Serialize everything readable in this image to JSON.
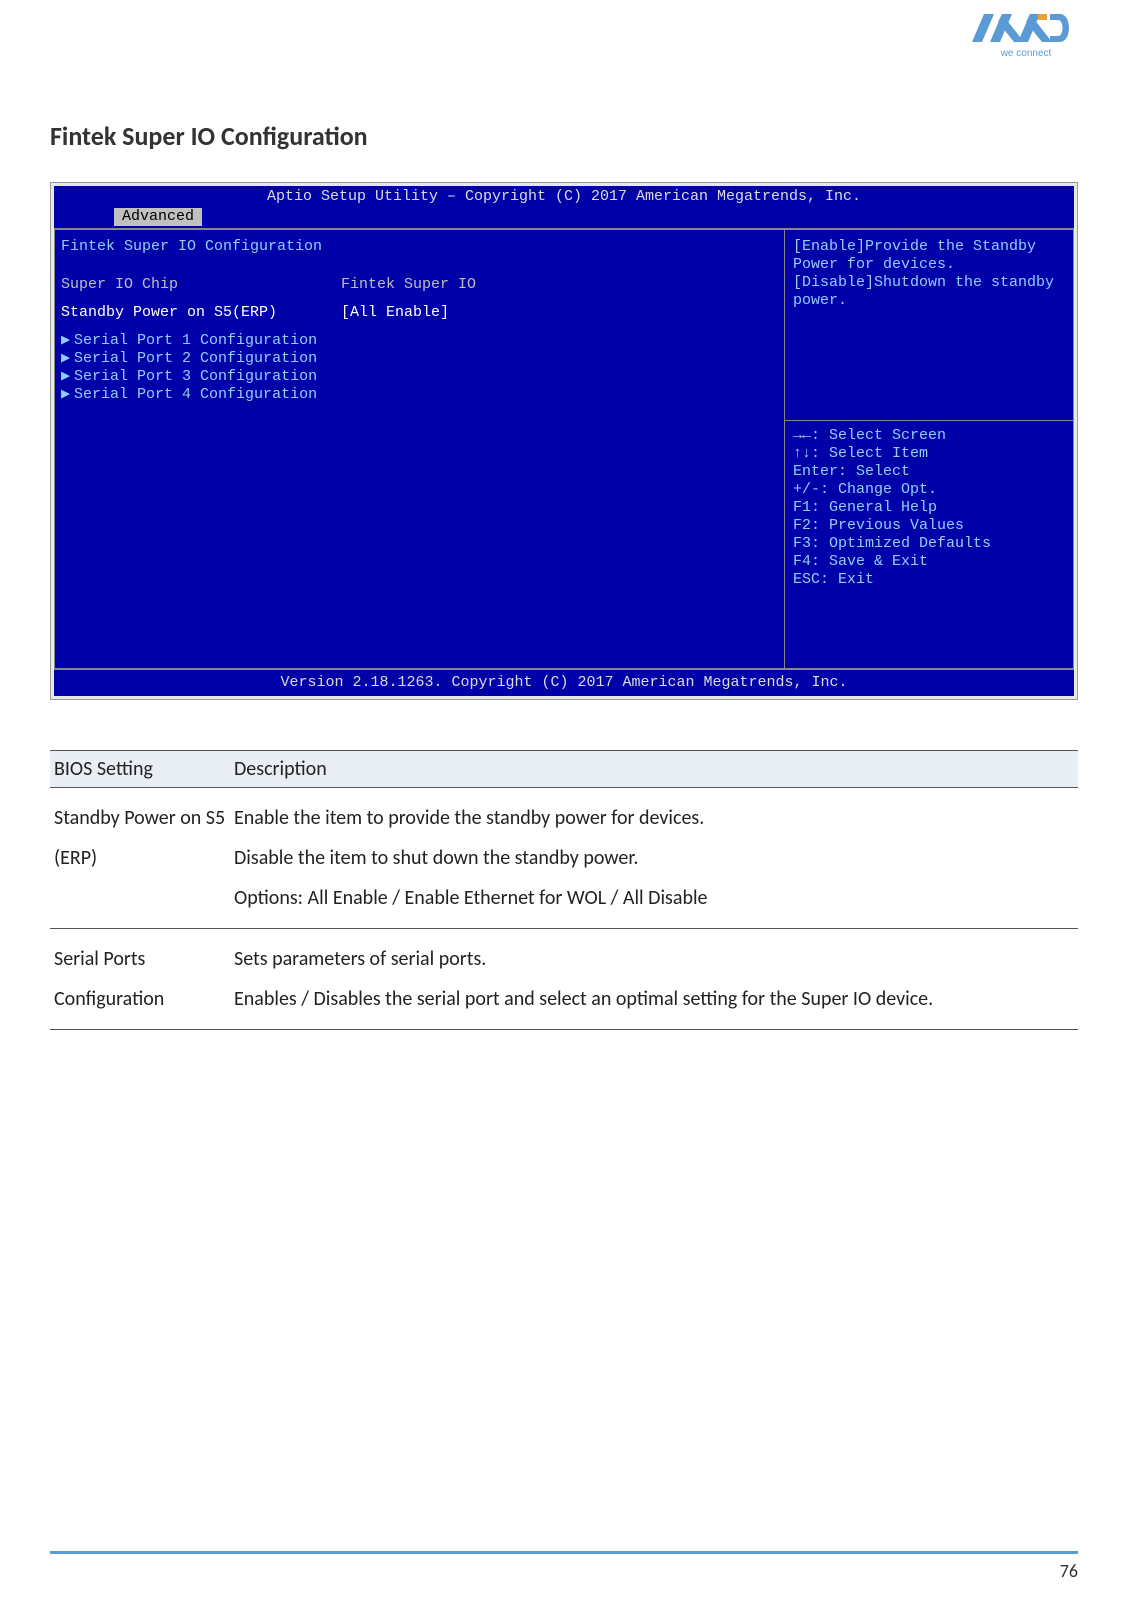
{
  "logo": {
    "tagline": "we connect",
    "primary": "#5b9bd5",
    "accent": "#e8a33d"
  },
  "page": {
    "title": "Fintek Super IO Configuration",
    "number": "76"
  },
  "bios": {
    "titlebar": "Aptio Setup Utility – Copyright (C) 2017 American Megatrends, Inc.",
    "tab": "Advanced",
    "footer": "Version 2.18.1263. Copyright (C) 2017 American Megatrends, Inc.",
    "left": {
      "heading": "Fintek Super IO Configuration",
      "chip_label": "Super IO Chip",
      "chip_value": "Fintek Super IO",
      "standby_label": "Standby Power on S5(ERP)",
      "standby_value": "[All Enable]",
      "subs": [
        "Serial Port 1 Configuration",
        "Serial Port 2 Configuration",
        "Serial Port 3 Configuration",
        "Serial Port 4 Configuration"
      ]
    },
    "right": {
      "desc1": "[Enable]Provide the Standby",
      "desc2": "Power for devices.",
      "desc3": "[Disable]Shutdown the standby",
      "desc4": "power.",
      "help": [
        "→←: Select Screen",
        "↑↓: Select Item",
        "Enter: Select",
        "+/-: Change Opt.",
        "F1: General Help",
        "F2: Previous Values",
        "F3: Optimized Defaults",
        "F4: Save & Exit",
        "ESC: Exit"
      ]
    }
  },
  "table": {
    "columns": [
      "BIOS Setting",
      "Description"
    ],
    "rows": [
      {
        "setting": "Standby Power on S5 (ERP)",
        "desc": "Enable the item to provide the standby power for devices.\nDisable the item to shut down the standby power.\nOptions: All Enable / Enable Ethernet for WOL / All Disable"
      },
      {
        "setting": "Serial Ports Configuration",
        "desc": "Sets parameters of serial ports.\nEnables / Disables the serial port and select an optimal setting for the Super IO device."
      }
    ]
  }
}
